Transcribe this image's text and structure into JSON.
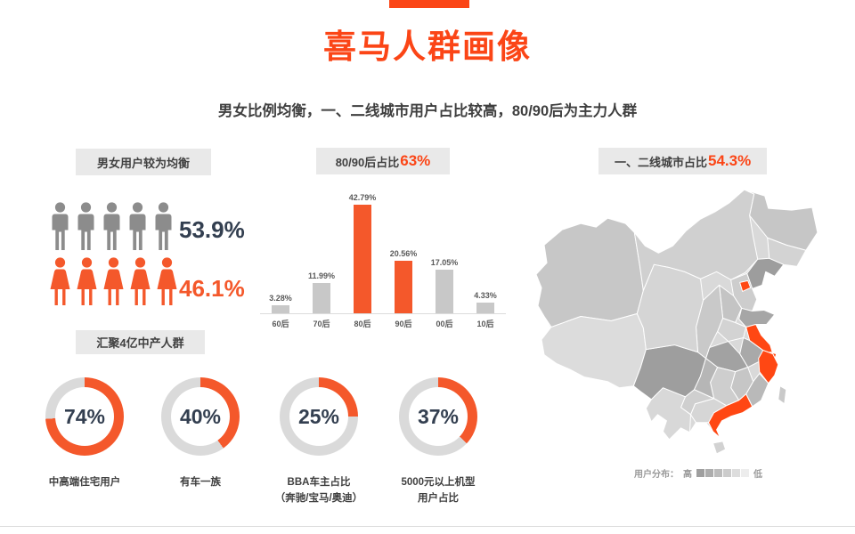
{
  "page": {
    "title": "喜马人群画像",
    "subtitle": "男女比例均衡，一、二线城市用户占比较高，80/90后为主力人群"
  },
  "colors": {
    "accent": "#FB4516",
    "orange2": "#F4582B",
    "bar_gray": "#C8C8C8",
    "donut_track": "#DADADA",
    "num_dark": "#333F50",
    "male_gray": "#8C8C8C",
    "tag_bg": "#E9E9E9",
    "axis_gray": "#DCDCDC",
    "map_highlight": "#FF4713"
  },
  "sections": {
    "gender": {
      "tag": "男女用户较为均衡"
    },
    "age": {
      "tag_text": "80/90后占比",
      "tag_value": "63%"
    },
    "city": {
      "tag_text": "一、二线城市占比",
      "tag_value": "54.3%"
    },
    "middle_class": {
      "tag": "汇聚4亿中产人群",
      "donut_labels": [
        [
          "中高端住宅用户"
        ],
        [
          "有车一族"
        ],
        [
          "BBA车主占比",
          "（奔驰/宝马/奥迪）"
        ],
        [
          "5000元以上机型",
          "用户占比"
        ]
      ]
    },
    "map_legend": {
      "label": "用户分布：",
      "high": "高",
      "low": "低",
      "blocks": [
        "#9F9F9F",
        "#ADADAD",
        "#BCBCBC",
        "#CCCCCC",
        "#DDDDDD",
        "#EDEDED"
      ]
    }
  },
  "chart_data": [
    {
      "type": "bar",
      "title": "80/90后占比63%",
      "categories": [
        "60后",
        "70后",
        "80后",
        "90后",
        "00后",
        "10后"
      ],
      "values": [
        3.28,
        11.99,
        42.79,
        20.56,
        17.05,
        4.33
      ],
      "unit": "%",
      "value_labels": [
        "3.28%",
        "11.99%",
        "42.79%",
        "20.56%",
        "17.05%",
        "4.33%"
      ],
      "highlighted_categories": [
        "80后",
        "90后"
      ],
      "xlabel": "",
      "ylabel": "",
      "ylim": [
        0,
        45
      ],
      "grid": false,
      "legend": "none"
    },
    {
      "type": "donut",
      "title": "汇聚4亿中产人群",
      "items": [
        {
          "label": "中高端住宅用户",
          "value": 74
        },
        {
          "label": "有车一族",
          "value": 40
        },
        {
          "label": "BBA车主占比（奔驰/宝马/奥迪）",
          "value": 25
        },
        {
          "label": "5000元以上机型用户占比",
          "value": 37
        }
      ],
      "unit": "%"
    },
    {
      "type": "pictogram",
      "title": "男女用户较为均衡",
      "items": [
        {
          "label": "男",
          "value": 53.9,
          "icons": 5
        },
        {
          "label": "女",
          "value": 46.1,
          "icons": 5
        }
      ],
      "unit": "%"
    },
    {
      "type": "choropleth-map",
      "title": "一、二线城市占比54.3%",
      "region": "中国",
      "highlighted_provinces": [
        "北京",
        "上海",
        "江苏",
        "浙江",
        "广东"
      ],
      "legend": {
        "label": "用户分布：",
        "high": "高",
        "low": "低"
      }
    }
  ]
}
